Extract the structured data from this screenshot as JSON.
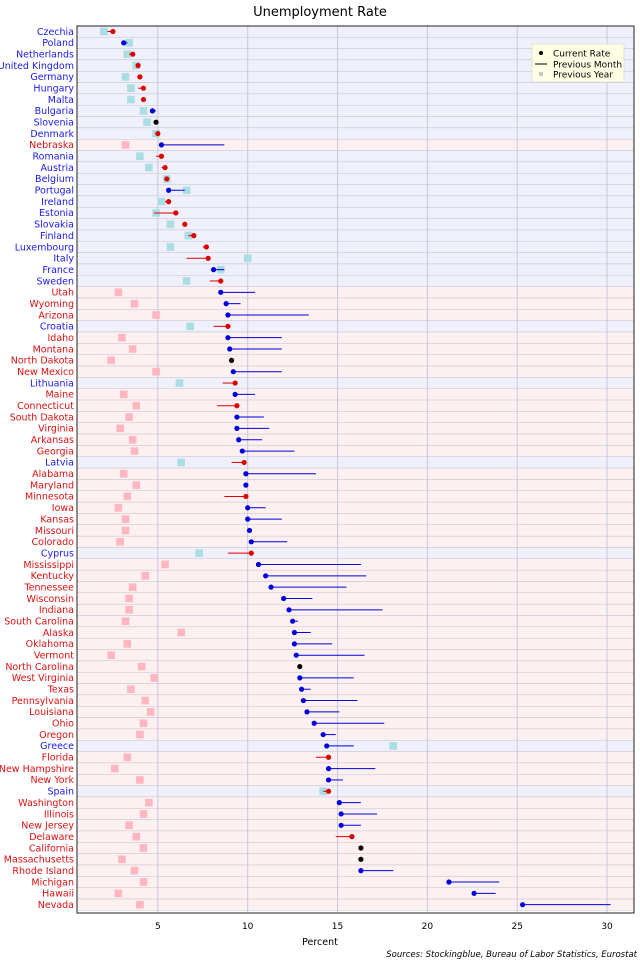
{
  "chart_data": {
    "type": "dot",
    "title": "Unemployment Rate",
    "xlabel": "Percent",
    "xlim": [
      0.5,
      31.5
    ],
    "xticks": [
      5,
      10,
      15,
      20,
      25,
      30
    ],
    "grid": true,
    "legend": {
      "placement": "top-right",
      "entries": [
        "Current Rate",
        "Previous Month",
        "Previous Year"
      ]
    },
    "source": "Sources: Stockingblue, Bureau of Labor Statistics, Eurostat",
    "colors": {
      "eu_label": "#1a1aee",
      "us_label": "#dd1111",
      "eu_band": "#f0f0fb",
      "us_band": "#fdf0f0",
      "rate_down": "#0000dd",
      "rate_up": "#dd0000",
      "rate_same": "#000000",
      "eu_prev_year": "#aadde4",
      "us_prev_year": "#ffb6c1",
      "gridline": "#c8c8dc"
    },
    "rows": [
      {
        "name": "Czechia",
        "group": "eu",
        "current": 2.5,
        "prev_month": 2.2,
        "prev_year": 2.0
      },
      {
        "name": "Poland",
        "group": "eu",
        "current": 3.1,
        "prev_month": 3.3,
        "prev_year": 3.4
      },
      {
        "name": "Netherlands",
        "group": "eu",
        "current": 3.6,
        "prev_month": 3.4,
        "prev_year": 3.3
      },
      {
        "name": "United Kingdom",
        "group": "eu",
        "current": 3.9,
        "prev_month": 3.8,
        "prev_year": 3.8
      },
      {
        "name": "Germany",
        "group": "eu",
        "current": 4.0,
        "prev_month": 3.9,
        "prev_year": 3.2
      },
      {
        "name": "Hungary",
        "group": "eu",
        "current": 4.2,
        "prev_month": 3.9,
        "prev_year": 3.5
      },
      {
        "name": "Malta",
        "group": "eu",
        "current": 4.2,
        "prev_month": 4.1,
        "prev_year": 3.5
      },
      {
        "name": "Bulgaria",
        "group": "eu",
        "current": 4.7,
        "prev_month": 4.9,
        "prev_year": 4.2
      },
      {
        "name": "Slovenia",
        "group": "eu",
        "current": 4.9,
        "prev_month": 4.9,
        "prev_year": 4.4
      },
      {
        "name": "Denmark",
        "group": "eu",
        "current": 5.0,
        "prev_month": 4.9,
        "prev_year": 4.9
      },
      {
        "name": "Nebraska",
        "group": "us",
        "current": 5.2,
        "prev_month": 8.7,
        "prev_year": 3.2
      },
      {
        "name": "Romania",
        "group": "eu",
        "current": 5.2,
        "prev_month": 4.9,
        "prev_year": 4.0
      },
      {
        "name": "Austria",
        "group": "eu",
        "current": 5.4,
        "prev_month": 5.2,
        "prev_year": 4.5
      },
      {
        "name": "Belgium",
        "group": "eu",
        "current": 5.5,
        "prev_month": 5.4,
        "prev_year": 5.5
      },
      {
        "name": "Portugal",
        "group": "eu",
        "current": 5.6,
        "prev_month": 6.5,
        "prev_year": 6.6
      },
      {
        "name": "Ireland",
        "group": "eu",
        "current": 5.6,
        "prev_month": 5.4,
        "prev_year": 5.2
      },
      {
        "name": "Estonia",
        "group": "eu",
        "current": 6.0,
        "prev_month": 4.8,
        "prev_year": 4.9
      },
      {
        "name": "Slovakia",
        "group": "eu",
        "current": 6.5,
        "prev_month": 6.4,
        "prev_year": 5.7
      },
      {
        "name": "Finland",
        "group": "eu",
        "current": 7.0,
        "prev_month": 6.7,
        "prev_year": 6.7
      },
      {
        "name": "Luxembourg",
        "group": "eu",
        "current": 7.7,
        "prev_month": 7.5,
        "prev_year": 5.7
      },
      {
        "name": "Italy",
        "group": "eu",
        "current": 7.8,
        "prev_month": 6.6,
        "prev_year": 10.0
      },
      {
        "name": "France",
        "group": "eu",
        "current": 8.1,
        "prev_month": 8.7,
        "prev_year": 8.5
      },
      {
        "name": "Sweden",
        "group": "eu",
        "current": 8.5,
        "prev_month": 7.9,
        "prev_year": 6.6
      },
      {
        "name": "Utah",
        "group": "us",
        "current": 8.5,
        "prev_month": 10.4,
        "prev_year": 2.8
      },
      {
        "name": "Wyoming",
        "group": "us",
        "current": 8.8,
        "prev_month": 9.6,
        "prev_year": 3.7
      },
      {
        "name": "Arizona",
        "group": "us",
        "current": 8.9,
        "prev_month": 13.4,
        "prev_year": 4.9
      },
      {
        "name": "Croatia",
        "group": "eu",
        "current": 8.9,
        "prev_month": 8.1,
        "prev_year": 6.8
      },
      {
        "name": "Idaho",
        "group": "us",
        "current": 8.9,
        "prev_month": 11.9,
        "prev_year": 3.0
      },
      {
        "name": "Montana",
        "group": "us",
        "current": 9.0,
        "prev_month": 11.9,
        "prev_year": 3.6
      },
      {
        "name": "North Dakota",
        "group": "us",
        "current": 9.1,
        "prev_month": 9.1,
        "prev_year": 2.4
      },
      {
        "name": "New Mexico",
        "group": "us",
        "current": 9.2,
        "prev_month": 11.9,
        "prev_year": 4.9
      },
      {
        "name": "Lithuania",
        "group": "eu",
        "current": 9.3,
        "prev_month": 8.6,
        "prev_year": 6.2
      },
      {
        "name": "Maine",
        "group": "us",
        "current": 9.3,
        "prev_month": 10.4,
        "prev_year": 3.1
      },
      {
        "name": "Connecticut",
        "group": "us",
        "current": 9.4,
        "prev_month": 8.3,
        "prev_year": 3.8
      },
      {
        "name": "South Dakota",
        "group": "us",
        "current": 9.4,
        "prev_month": 10.9,
        "prev_year": 3.4
      },
      {
        "name": "Virginia",
        "group": "us",
        "current": 9.4,
        "prev_month": 11.2,
        "prev_year": 2.9
      },
      {
        "name": "Arkansas",
        "group": "us",
        "current": 9.5,
        "prev_month": 10.8,
        "prev_year": 3.6
      },
      {
        "name": "Georgia",
        "group": "us",
        "current": 9.7,
        "prev_month": 12.6,
        "prev_year": 3.7
      },
      {
        "name": "Latvia",
        "group": "eu",
        "current": 9.8,
        "prev_month": 9.1,
        "prev_year": 6.3
      },
      {
        "name": "Alabama",
        "group": "us",
        "current": 9.9,
        "prev_month": 13.8,
        "prev_year": 3.1
      },
      {
        "name": "Maryland",
        "group": "us",
        "current": 9.9,
        "prev_month": 10.0,
        "prev_year": 3.8
      },
      {
        "name": "Minnesota",
        "group": "us",
        "current": 9.9,
        "prev_month": 8.7,
        "prev_year": 3.3
      },
      {
        "name": "Iowa",
        "group": "us",
        "current": 10.0,
        "prev_month": 11.0,
        "prev_year": 2.8
      },
      {
        "name": "Kansas",
        "group": "us",
        "current": 10.0,
        "prev_month": 11.9,
        "prev_year": 3.2
      },
      {
        "name": "Missouri",
        "group": "us",
        "current": 10.1,
        "prev_month": 10.2,
        "prev_year": 3.2
      },
      {
        "name": "Colorado",
        "group": "us",
        "current": 10.2,
        "prev_month": 12.2,
        "prev_year": 2.9
      },
      {
        "name": "Cyprus",
        "group": "eu",
        "current": 10.2,
        "prev_month": 8.9,
        "prev_year": 7.3
      },
      {
        "name": "Mississippi",
        "group": "us",
        "current": 10.6,
        "prev_month": 16.3,
        "prev_year": 5.4
      },
      {
        "name": "Kentucky",
        "group": "us",
        "current": 11.0,
        "prev_month": 16.6,
        "prev_year": 4.3
      },
      {
        "name": "Tennessee",
        "group": "us",
        "current": 11.3,
        "prev_month": 15.5,
        "prev_year": 3.6
      },
      {
        "name": "Wisconsin",
        "group": "us",
        "current": 12.0,
        "prev_month": 13.6,
        "prev_year": 3.4
      },
      {
        "name": "Indiana",
        "group": "us",
        "current": 12.3,
        "prev_month": 17.5,
        "prev_year": 3.4
      },
      {
        "name": "South Carolina",
        "group": "us",
        "current": 12.5,
        "prev_month": 12.8,
        "prev_year": 3.2
      },
      {
        "name": "Alaska",
        "group": "us",
        "current": 12.6,
        "prev_month": 13.5,
        "prev_year": 6.3
      },
      {
        "name": "Oklahoma",
        "group": "us",
        "current": 12.6,
        "prev_month": 14.7,
        "prev_year": 3.3
      },
      {
        "name": "Vermont",
        "group": "us",
        "current": 12.7,
        "prev_month": 16.5,
        "prev_year": 2.4
      },
      {
        "name": "North Carolina",
        "group": "us",
        "current": 12.9,
        "prev_month": 12.9,
        "prev_year": 4.1
      },
      {
        "name": "West Virginia",
        "group": "us",
        "current": 12.9,
        "prev_month": 15.9,
        "prev_year": 4.8
      },
      {
        "name": "Texas",
        "group": "us",
        "current": 13.0,
        "prev_month": 13.5,
        "prev_year": 3.5
      },
      {
        "name": "Pennsylvania",
        "group": "us",
        "current": 13.1,
        "prev_month": 16.1,
        "prev_year": 4.3
      },
      {
        "name": "Louisiana",
        "group": "us",
        "current": 13.3,
        "prev_month": 15.1,
        "prev_year": 4.6
      },
      {
        "name": "Ohio",
        "group": "us",
        "current": 13.7,
        "prev_month": 17.6,
        "prev_year": 4.2
      },
      {
        "name": "Oregon",
        "group": "us",
        "current": 14.2,
        "prev_month": 14.9,
        "prev_year": 4.0
      },
      {
        "name": "Greece",
        "group": "eu",
        "current": 14.4,
        "prev_month": 15.9,
        "prev_year": 18.1
      },
      {
        "name": "Florida",
        "group": "us",
        "current": 14.5,
        "prev_month": 13.8,
        "prev_year": 3.3
      },
      {
        "name": "New Hampshire",
        "group": "us",
        "current": 14.5,
        "prev_month": 17.1,
        "prev_year": 2.6
      },
      {
        "name": "New York",
        "group": "us",
        "current": 14.5,
        "prev_month": 15.3,
        "prev_year": 4.0
      },
      {
        "name": "Spain",
        "group": "eu",
        "current": 14.5,
        "prev_month": 14.2,
        "prev_year": 14.2
      },
      {
        "name": "Washington",
        "group": "us",
        "current": 15.1,
        "prev_month": 16.3,
        "prev_year": 4.5
      },
      {
        "name": "Illinois",
        "group": "us",
        "current": 15.2,
        "prev_month": 17.2,
        "prev_year": 4.2
      },
      {
        "name": "New Jersey",
        "group": "us",
        "current": 15.2,
        "prev_month": 16.3,
        "prev_year": 3.4
      },
      {
        "name": "Delaware",
        "group": "us",
        "current": 15.8,
        "prev_month": 14.9,
        "prev_year": 3.8
      },
      {
        "name": "California",
        "group": "us",
        "current": 16.3,
        "prev_month": 16.3,
        "prev_year": 4.2
      },
      {
        "name": "Massachusetts",
        "group": "us",
        "current": 16.3,
        "prev_month": 16.3,
        "prev_year": 3.0
      },
      {
        "name": "Rhode Island",
        "group": "us",
        "current": 16.3,
        "prev_month": 18.1,
        "prev_year": 3.7
      },
      {
        "name": "Michigan",
        "group": "us",
        "current": 21.2,
        "prev_month": 24.0,
        "prev_year": 4.2
      },
      {
        "name": "Hawaii",
        "group": "us",
        "current": 22.6,
        "prev_month": 23.8,
        "prev_year": 2.8
      },
      {
        "name": "Nevada",
        "group": "us",
        "current": 25.3,
        "prev_month": 30.2,
        "prev_year": 4.0
      }
    ]
  }
}
